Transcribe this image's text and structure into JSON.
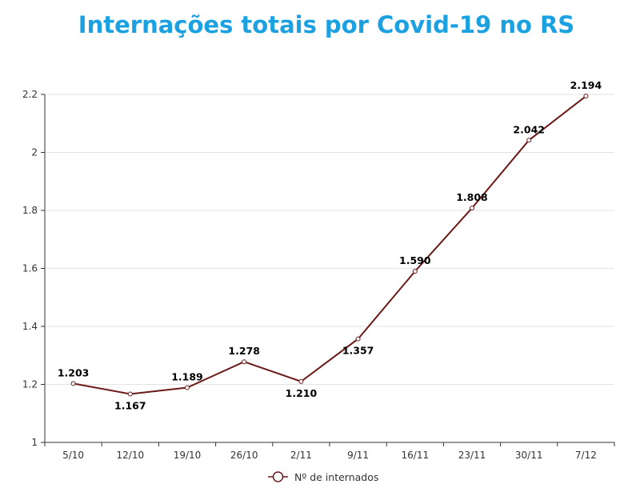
{
  "chart_data": {
    "type": "line",
    "title": "Internações totais por Covid-19 no RS",
    "xlabel": "",
    "ylabel": "",
    "categories": [
      "5/10",
      "12/10",
      "19/10",
      "26/10",
      "2/11",
      "9/11",
      "16/11",
      "23/11",
      "30/11",
      "7/12"
    ],
    "series": [
      {
        "name": "Nº de internados",
        "values": [
          1.203,
          1.167,
          1.189,
          1.278,
          1.21,
          1.357,
          1.59,
          1.808,
          2.042,
          2.194
        ],
        "labels": [
          "1.203",
          "1.167",
          "1.189",
          "1.278",
          "1.210",
          "1.357",
          "1.590",
          "1.808",
          "2.042",
          "2.194"
        ],
        "color": "#6b1a1a"
      }
    ],
    "ylim": [
      1,
      2.2
    ],
    "yticks": [
      "1",
      "1.2",
      "1.4",
      "1.6",
      "1.8",
      "2",
      "2.2"
    ],
    "grid": "horizontal",
    "legend": "bottom-center",
    "title_color": "#1ba1e2"
  }
}
